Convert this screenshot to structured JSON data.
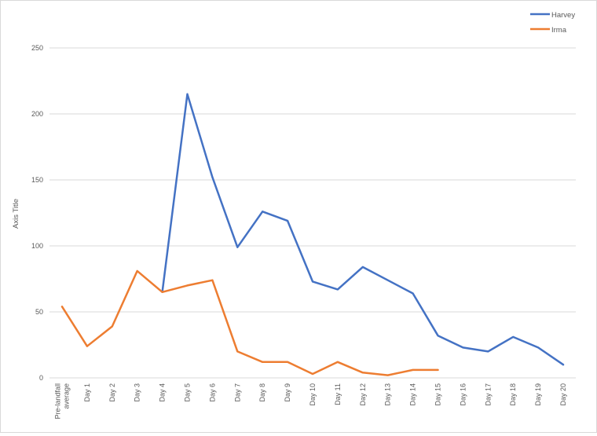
{
  "chart_data": {
    "type": "line",
    "title": "",
    "xlabel": "",
    "ylabel": "Axis Title",
    "ylim": [
      0,
      250
    ],
    "yticks": [
      0,
      50,
      100,
      150,
      200,
      250
    ],
    "grid": true,
    "legend_position": "top-right",
    "categories": [
      "Pre-landfall average",
      "Day 1",
      "Day 2",
      "Day 3",
      "Day 4",
      "Day 5",
      "Day 6",
      "Day 7",
      "Day 8",
      "Day 9",
      "Day 10",
      "Day 11",
      "Day 12",
      "Day 13",
      "Day 14",
      "Day 15",
      "Day 16",
      "Day 17",
      "Day 18",
      "Day 19",
      "Day 20"
    ],
    "category_lines": [
      [
        "Pre-landfall",
        "average"
      ],
      [
        "Day 1"
      ],
      [
        "Day 2"
      ],
      [
        "Day 3"
      ],
      [
        "Day 4"
      ],
      [
        "Day 5"
      ],
      [
        "Day 6"
      ],
      [
        "Day 7"
      ],
      [
        "Day 8"
      ],
      [
        "Day 9"
      ],
      [
        "Day 10"
      ],
      [
        "Day 11"
      ],
      [
        "Day 12"
      ],
      [
        "Day 13"
      ],
      [
        "Day 14"
      ],
      [
        "Day 15"
      ],
      [
        "Day 16"
      ],
      [
        "Day 17"
      ],
      [
        "Day 18"
      ],
      [
        "Day 19"
      ],
      [
        "Day 20"
      ]
    ],
    "series": [
      {
        "name": "Harvey",
        "color": "#4472c4",
        "values": [
          null,
          null,
          null,
          null,
          65,
          215,
          152,
          99,
          126,
          119,
          73,
          67,
          84,
          74,
          64,
          32,
          23,
          20,
          31,
          23,
          10
        ]
      },
      {
        "name": "Irma",
        "color": "#ed7d31",
        "values": [
          54,
          24,
          39,
          81,
          65,
          70,
          74,
          20,
          12,
          12,
          3,
          12,
          4,
          2,
          6,
          6,
          null,
          null,
          null,
          null,
          null
        ]
      }
    ]
  },
  "legend": {
    "items": [
      {
        "label": "Harvey",
        "color": "#4472c4"
      },
      {
        "label": "Irma",
        "color": "#ed7d31"
      }
    ]
  },
  "axis": {
    "y_title": "Axis Title",
    "y_tick_labels": [
      "0",
      "50",
      "100",
      "150",
      "200",
      "250"
    ]
  },
  "colors": {
    "gridline": "#d9d9d9",
    "text": "#595959",
    "border": "#d9d9d9"
  }
}
